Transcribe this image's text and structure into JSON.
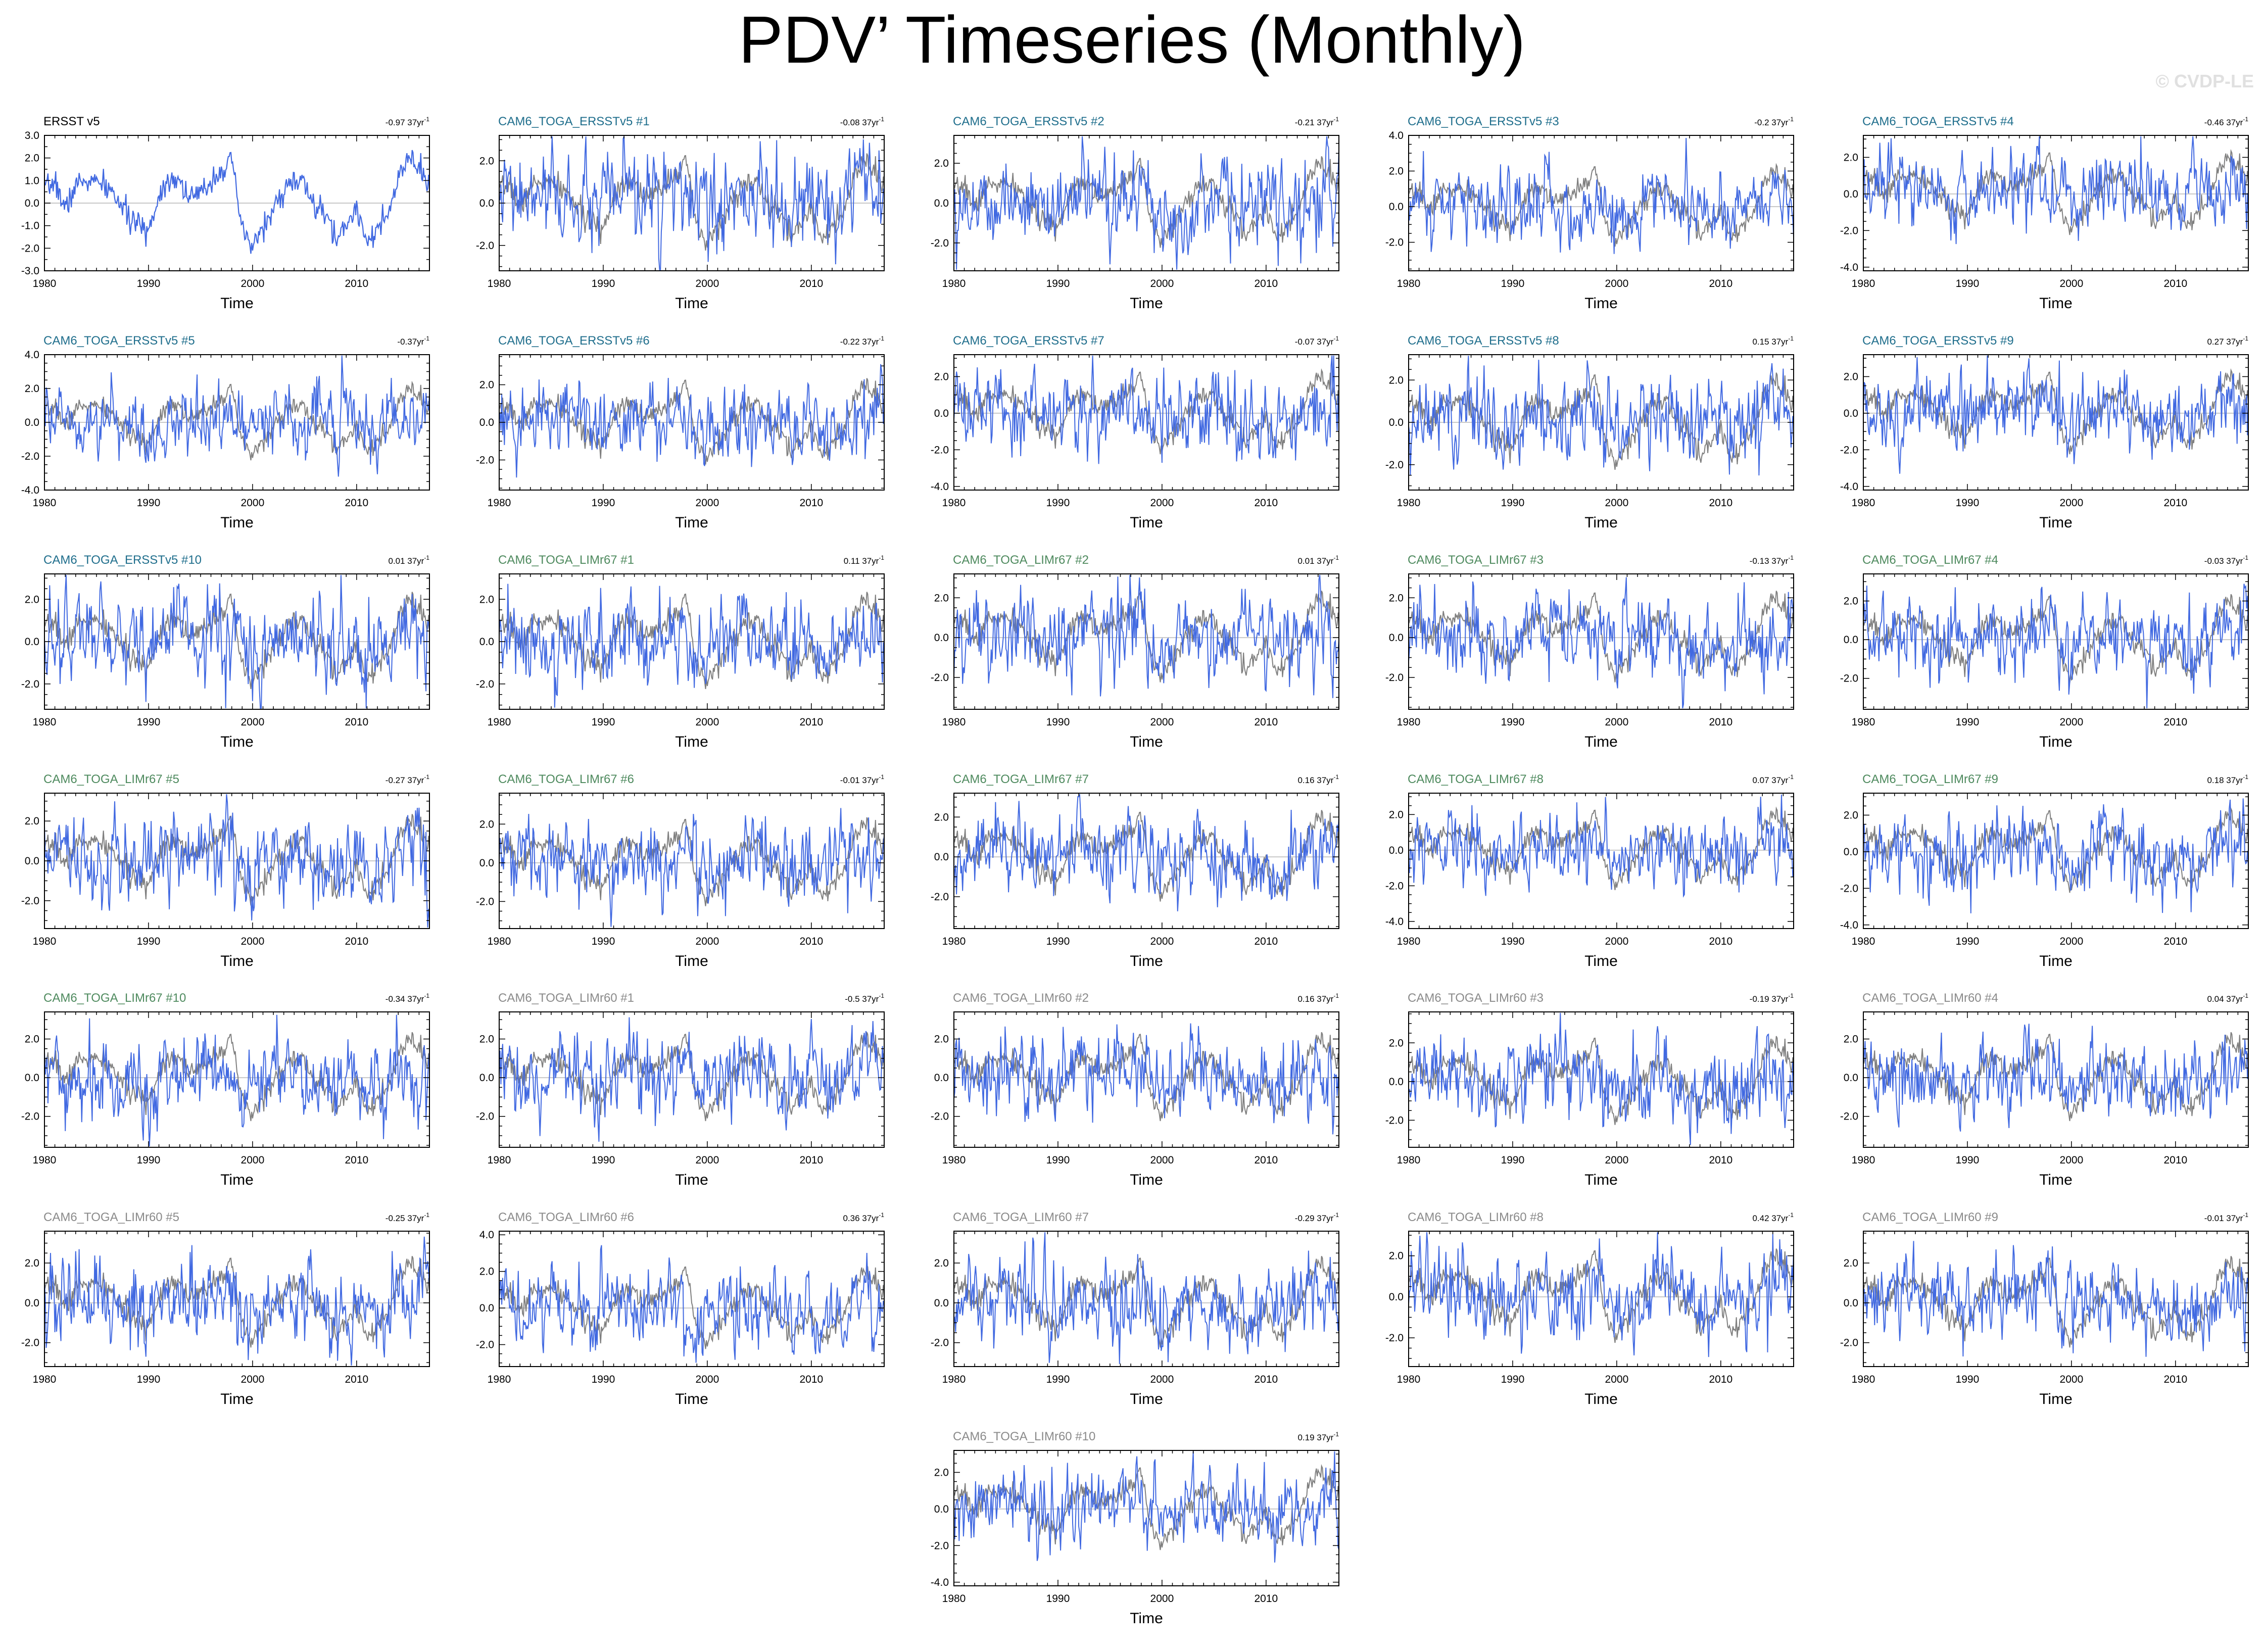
{
  "title": "PDV’ Timeseries (Monthly)",
  "watermark": "© CVDP-LE",
  "colors": {
    "member_line": "#4169e1",
    "observation_line": "#7f7f7f",
    "title_obs": "#000000",
    "title_ersst": "#1f6e8c",
    "title_limr67": "#4e8a5e",
    "title_limr60": "#8a8a8a"
  },
  "chart_data": [
    {
      "type": "line",
      "title": "ERSST v5",
      "group": "obs",
      "trend_label": "-0.97 37yr",
      "trend_exp": "-1",
      "xlabel": "Time",
      "xlim": [
        1980,
        2017
      ],
      "xticks": [
        1980,
        1990,
        2000,
        2010
      ],
      "ylim": [
        -3,
        3
      ],
      "yticks": [
        "3.0",
        "2.0",
        "1.0",
        "0.0",
        "-1.0",
        "-2.0",
        "-3.0"
      ],
      "ytick_values": [
        3,
        2,
        1,
        0,
        -1,
        -2,
        -3
      ],
      "series": [
        {
          "name": "ERSST v5",
          "approx_points": [
            [
              1980,
              0.5
            ],
            [
              1981,
              1.0
            ],
            [
              1982,
              -0.3
            ],
            [
              1983,
              0.8
            ],
            [
              1984,
              1.0
            ],
            [
              1985,
              0.9
            ],
            [
              1986,
              0.7
            ],
            [
              1987,
              0.2
            ],
            [
              1988,
              -0.6
            ],
            [
              1989,
              -1.0
            ],
            [
              1990,
              -1.2
            ],
            [
              1991,
              0.3
            ],
            [
              1992,
              1.2
            ],
            [
              1993,
              1.0
            ],
            [
              1994,
              0.2
            ],
            [
              1995,
              0.4
            ],
            [
              1996,
              1.0
            ],
            [
              1997,
              1.5
            ],
            [
              1998,
              1.8
            ],
            [
              1999,
              -1.2
            ],
            [
              2000,
              -2.0
            ],
            [
              2001,
              -1.0
            ],
            [
              2002,
              -0.4
            ],
            [
              2003,
              0.6
            ],
            [
              2004,
              1.0
            ],
            [
              2005,
              0.8
            ],
            [
              2006,
              -0.2
            ],
            [
              2007,
              -0.5
            ],
            [
              2008,
              -1.6
            ],
            [
              2009,
              -1.0
            ],
            [
              2010,
              -0.2
            ],
            [
              2011,
              -1.6
            ],
            [
              2012,
              -1.2
            ],
            [
              2013,
              -0.6
            ],
            [
              2014,
              1.0
            ],
            [
              2015,
              2.0
            ],
            [
              2016,
              1.5
            ],
            [
              2017,
              0.6
            ]
          ]
        }
      ]
    },
    {
      "type": "line",
      "title": "CAM6_TOGA_ERSSTv5 #1",
      "group": "ersst",
      "trend_label": "-0.08 37yr",
      "trend_exp": "-1",
      "xlabel": "Time",
      "xlim": [
        1980,
        2017
      ],
      "xticks": [
        1980,
        1990,
        2000,
        2010
      ],
      "ylim": [
        -3.2,
        3.2
      ],
      "yticks": [
        "2.0",
        "0.0",
        "-2.0"
      ],
      "ytick_values": [
        2,
        0,
        -2
      ]
    },
    {
      "type": "line",
      "title": "CAM6_TOGA_ERSSTv5 #2",
      "group": "ersst",
      "trend_label": "-0.21 37yr",
      "trend_exp": "-1",
      "xlabel": "Time",
      "xlim": [
        1980,
        2017
      ],
      "xticks": [
        1980,
        1990,
        2000,
        2010
      ],
      "ylim": [
        -3.4,
        3.4
      ],
      "yticks": [
        "2.0",
        "0.0",
        "-2.0"
      ],
      "ytick_values": [
        2,
        0,
        -2
      ]
    },
    {
      "type": "line",
      "title": "CAM6_TOGA_ERSSTv5 #3",
      "group": "ersst",
      "trend_label": "-0.2 37yr",
      "trend_exp": "-1",
      "xlabel": "Time",
      "xlim": [
        1980,
        2017
      ],
      "xticks": [
        1980,
        1990,
        2000,
        2010
      ],
      "ylim": [
        -3.6,
        4.0
      ],
      "yticks": [
        "4.0",
        "2.0",
        "0.0",
        "-2.0"
      ],
      "ytick_values": [
        4,
        2,
        0,
        -2
      ]
    },
    {
      "type": "line",
      "title": "CAM6_TOGA_ERSSTv5 #4",
      "group": "ersst",
      "trend_label": "-0.46 37yr",
      "trend_exp": "-1",
      "xlabel": "Time",
      "xlim": [
        1980,
        2017
      ],
      "xticks": [
        1980,
        1990,
        2000,
        2010
      ],
      "ylim": [
        -4.2,
        3.2
      ],
      "yticks": [
        "2.0",
        "0.0",
        "-2.0",
        "-4.0"
      ],
      "ytick_values": [
        2,
        0,
        -2,
        -4
      ]
    },
    {
      "type": "line",
      "title": "CAM6_TOGA_ERSSTv5 #5",
      "group": "ersst",
      "trend_label": "-0.37yr",
      "trend_exp": "-1",
      "xlabel": "Time",
      "xlim": [
        1980,
        2017
      ],
      "xticks": [
        1980,
        1990,
        2000,
        2010
      ],
      "ylim": [
        -4.0,
        4.0
      ],
      "yticks": [
        "4.0",
        "2.0",
        "0.0",
        "-2.0",
        "-4.0"
      ],
      "ytick_values": [
        4,
        2,
        0,
        -2,
        -4
      ]
    },
    {
      "type": "line",
      "title": "CAM6_TOGA_ERSSTv5 #6",
      "group": "ersst",
      "trend_label": "-0.22 37yr",
      "trend_exp": "-1",
      "xlabel": "Time",
      "xlim": [
        1980,
        2017
      ],
      "xticks": [
        1980,
        1990,
        2000,
        2010
      ],
      "ylim": [
        -3.6,
        3.6
      ],
      "yticks": [
        "2.0",
        "0.0",
        "-2.0"
      ],
      "ytick_values": [
        2,
        0,
        -2
      ]
    },
    {
      "type": "line",
      "title": "CAM6_TOGA_ERSSTv5 #7",
      "group": "ersst",
      "trend_label": "-0.07 37yr",
      "trend_exp": "-1",
      "xlabel": "Time",
      "xlim": [
        1980,
        2017
      ],
      "xticks": [
        1980,
        1990,
        2000,
        2010
      ],
      "ylim": [
        -4.2,
        3.2
      ],
      "yticks": [
        "2.0",
        "0.0",
        "-2.0",
        "-4.0"
      ],
      "ytick_values": [
        2,
        0,
        -2,
        -4
      ]
    },
    {
      "type": "line",
      "title": "CAM6_TOGA_ERSSTv5 #8",
      "group": "ersst",
      "trend_label": "0.15 37yr",
      "trend_exp": "-1",
      "xlabel": "Time",
      "xlim": [
        1980,
        2017
      ],
      "xticks": [
        1980,
        1990,
        2000,
        2010
      ],
      "ylim": [
        -3.2,
        3.2
      ],
      "yticks": [
        "2.0",
        "0.0",
        "-2.0"
      ],
      "ytick_values": [
        2,
        0,
        -2
      ]
    },
    {
      "type": "line",
      "title": "CAM6_TOGA_ERSSTv5 #9",
      "group": "ersst",
      "trend_label": "0.27 37yr",
      "trend_exp": "-1",
      "xlabel": "Time",
      "xlim": [
        1980,
        2017
      ],
      "xticks": [
        1980,
        1990,
        2000,
        2010
      ],
      "ylim": [
        -4.2,
        3.2
      ],
      "yticks": [
        "2.0",
        "0.0",
        "-2.0",
        "-4.0"
      ],
      "ytick_values": [
        2,
        0,
        -2,
        -4
      ]
    },
    {
      "type": "line",
      "title": "CAM6_TOGA_ERSSTv5 #10",
      "group": "ersst",
      "trend_label": "0.01 37yr",
      "trend_exp": "-1",
      "xlabel": "Time",
      "xlim": [
        1980,
        2017
      ],
      "xticks": [
        1980,
        1990,
        2000,
        2010
      ],
      "ylim": [
        -3.2,
        3.2
      ],
      "yticks": [
        "2.0",
        "0.0",
        "-2.0"
      ],
      "ytick_values": [
        2,
        0,
        -2
      ]
    },
    {
      "type": "line",
      "title": "CAM6_TOGA_LIMr67 #1",
      "group": "limr67",
      "trend_label": "0.11 37yr",
      "trend_exp": "-1",
      "xlabel": "Time",
      "xlim": [
        1980,
        2017
      ],
      "xticks": [
        1980,
        1990,
        2000,
        2010
      ],
      "ylim": [
        -3.2,
        3.2
      ],
      "yticks": [
        "2.0",
        "0.0",
        "-2.0"
      ],
      "ytick_values": [
        2,
        0,
        -2
      ]
    },
    {
      "type": "line",
      "title": "CAM6_TOGA_LIMr67 #2",
      "group": "limr67",
      "trend_label": "0.01 37yr",
      "trend_exp": "-1",
      "xlabel": "Time",
      "xlim": [
        1980,
        2017
      ],
      "xticks": [
        1980,
        1990,
        2000,
        2010
      ],
      "ylim": [
        -3.6,
        3.2
      ],
      "yticks": [
        "2.0",
        "0.0",
        "-2.0"
      ],
      "ytick_values": [
        2,
        0,
        -2
      ]
    },
    {
      "type": "line",
      "title": "CAM6_TOGA_LIMr67 #3",
      "group": "limr67",
      "trend_label": "-0.13 37yr",
      "trend_exp": "-1",
      "xlabel": "Time",
      "xlim": [
        1980,
        2017
      ],
      "xticks": [
        1980,
        1990,
        2000,
        2010
      ],
      "ylim": [
        -3.6,
        3.2
      ],
      "yticks": [
        "2.0",
        "0.0",
        "-2.0"
      ],
      "ytick_values": [
        2,
        0,
        -2
      ]
    },
    {
      "type": "line",
      "title": "CAM6_TOGA_LIMr67 #4",
      "group": "limr67",
      "trend_label": "-0.03 37yr",
      "trend_exp": "-1",
      "xlabel": "Time",
      "xlim": [
        1980,
        2017
      ],
      "xticks": [
        1980,
        1990,
        2000,
        2010
      ],
      "ylim": [
        -3.6,
        3.4
      ],
      "yticks": [
        "2.0",
        "0.0",
        "-2.0"
      ],
      "ytick_values": [
        2,
        0,
        -2
      ]
    },
    {
      "type": "line",
      "title": "CAM6_TOGA_LIMr67 #5",
      "group": "limr67",
      "trend_label": "-0.27 37yr",
      "trend_exp": "-1",
      "xlabel": "Time",
      "xlim": [
        1980,
        2017
      ],
      "xticks": [
        1980,
        1990,
        2000,
        2010
      ],
      "ylim": [
        -3.4,
        3.4
      ],
      "yticks": [
        "2.0",
        "0.0",
        "-2.0"
      ],
      "ytick_values": [
        2,
        0,
        -2
      ]
    },
    {
      "type": "line",
      "title": "CAM6_TOGA_LIMr67 #6",
      "group": "limr67",
      "trend_label": "-0.01 37yr",
      "trend_exp": "-1",
      "xlabel": "Time",
      "xlim": [
        1980,
        2017
      ],
      "xticks": [
        1980,
        1990,
        2000,
        2010
      ],
      "ylim": [
        -3.4,
        3.6
      ],
      "yticks": [
        "2.0",
        "0.0",
        "-2.0"
      ],
      "ytick_values": [
        2,
        0,
        -2
      ]
    },
    {
      "type": "line",
      "title": "CAM6_TOGA_LIMr67 #7",
      "group": "limr67",
      "trend_label": "0.16 37yr",
      "trend_exp": "-1",
      "xlabel": "Time",
      "xlim": [
        1980,
        2017
      ],
      "xticks": [
        1980,
        1990,
        2000,
        2010
      ],
      "ylim": [
        -3.6,
        3.2
      ],
      "yticks": [
        "2.0",
        "0.0",
        "-2.0"
      ],
      "ytick_values": [
        2,
        0,
        -2
      ]
    },
    {
      "type": "line",
      "title": "CAM6_TOGA_LIMr67 #8",
      "group": "limr67",
      "trend_label": "0.07 37yr",
      "trend_exp": "-1",
      "xlabel": "Time",
      "xlim": [
        1980,
        2017
      ],
      "xticks": [
        1980,
        1990,
        2000,
        2010
      ],
      "ylim": [
        -4.4,
        3.2
      ],
      "yticks": [
        "2.0",
        "0.0",
        "-2.0",
        "-4.0"
      ],
      "ytick_values": [
        2,
        0,
        -2,
        -4
      ]
    },
    {
      "type": "line",
      "title": "CAM6_TOGA_LIMr67 #9",
      "group": "limr67",
      "trend_label": "0.18 37yr",
      "trend_exp": "-1",
      "xlabel": "Time",
      "xlim": [
        1980,
        2017
      ],
      "xticks": [
        1980,
        1990,
        2000,
        2010
      ],
      "ylim": [
        -4.2,
        3.2
      ],
      "yticks": [
        "2.0",
        "0.0",
        "-2.0",
        "-4.0"
      ],
      "ytick_values": [
        2,
        0,
        -2,
        -4
      ]
    },
    {
      "type": "line",
      "title": "CAM6_TOGA_LIMr67 #10",
      "group": "limr67",
      "trend_label": "-0.34 37yr",
      "trend_exp": "-1",
      "xlabel": "Time",
      "xlim": [
        1980,
        2017
      ],
      "xticks": [
        1980,
        1990,
        2000,
        2010
      ],
      "ylim": [
        -3.6,
        3.4
      ],
      "yticks": [
        "2.0",
        "0.0",
        "-2.0"
      ],
      "ytick_values": [
        2,
        0,
        -2
      ]
    },
    {
      "type": "line",
      "title": "CAM6_TOGA_LIMr60 #1",
      "group": "limr60",
      "trend_label": "-0.5 37yr",
      "trend_exp": "-1",
      "xlabel": "Time",
      "xlim": [
        1980,
        2017
      ],
      "xticks": [
        1980,
        1990,
        2000,
        2010
      ],
      "ylim": [
        -3.6,
        3.4
      ],
      "yticks": [
        "2.0",
        "0.0",
        "-2.0"
      ],
      "ytick_values": [
        2,
        0,
        -2
      ]
    },
    {
      "type": "line",
      "title": "CAM6_TOGA_LIMr60 #2",
      "group": "limr60",
      "trend_label": "0.16 37yr",
      "trend_exp": "-1",
      "xlabel": "Time",
      "xlim": [
        1980,
        2017
      ],
      "xticks": [
        1980,
        1990,
        2000,
        2010
      ],
      "ylim": [
        -3.6,
        3.4
      ],
      "yticks": [
        "2.0",
        "0.0",
        "-2.0"
      ],
      "ytick_values": [
        2,
        0,
        -2
      ]
    },
    {
      "type": "line",
      "title": "CAM6_TOGA_LIMr60 #3",
      "group": "limr60",
      "trend_label": "-0.19 37yr",
      "trend_exp": "-1",
      "xlabel": "Time",
      "xlim": [
        1980,
        2017
      ],
      "xticks": [
        1980,
        1990,
        2000,
        2010
      ],
      "ylim": [
        -3.4,
        3.6
      ],
      "yticks": [
        "2.0",
        "0.0",
        "-2.0"
      ],
      "ytick_values": [
        2,
        0,
        -2
      ]
    },
    {
      "type": "line",
      "title": "CAM6_TOGA_LIMr60 #4",
      "group": "limr60",
      "trend_label": "0.04 37yr",
      "trend_exp": "-1",
      "xlabel": "Time",
      "xlim": [
        1980,
        2017
      ],
      "xticks": [
        1980,
        1990,
        2000,
        2010
      ],
      "ylim": [
        -3.6,
        3.4
      ],
      "yticks": [
        "2.0",
        "0.0",
        "-2.0"
      ],
      "ytick_values": [
        2,
        0,
        -2
      ]
    },
    {
      "type": "line",
      "title": "CAM6_TOGA_LIMr60 #5",
      "group": "limr60",
      "trend_label": "-0.25 37yr",
      "trend_exp": "-1",
      "xlabel": "Time",
      "xlim": [
        1980,
        2017
      ],
      "xticks": [
        1980,
        1990,
        2000,
        2010
      ],
      "ylim": [
        -3.2,
        3.6
      ],
      "yticks": [
        "2.0",
        "0.0",
        "-2.0"
      ],
      "ytick_values": [
        2,
        0,
        -2
      ]
    },
    {
      "type": "line",
      "title": "CAM6_TOGA_LIMr60 #6",
      "group": "limr60",
      "trend_label": "0.36 37yr",
      "trend_exp": "-1",
      "xlabel": "Time",
      "xlim": [
        1980,
        2017
      ],
      "xticks": [
        1980,
        1990,
        2000,
        2010
      ],
      "ylim": [
        -3.2,
        4.2
      ],
      "yticks": [
        "4.0",
        "2.0",
        "0.0",
        "-2.0"
      ],
      "ytick_values": [
        4,
        2,
        0,
        -2
      ]
    },
    {
      "type": "line",
      "title": "CAM6_TOGA_LIMr60 #7",
      "group": "limr60",
      "trend_label": "-0.29 37yr",
      "trend_exp": "-1",
      "xlabel": "Time",
      "xlim": [
        1980,
        2017
      ],
      "xticks": [
        1980,
        1990,
        2000,
        2010
      ],
      "ylim": [
        -3.2,
        3.6
      ],
      "yticks": [
        "2.0",
        "0.0",
        "-2.0"
      ],
      "ytick_values": [
        2,
        0,
        -2
      ]
    },
    {
      "type": "line",
      "title": "CAM6_TOGA_LIMr60 #8",
      "group": "limr60",
      "trend_label": "0.42 37yr",
      "trend_exp": "-1",
      "xlabel": "Time",
      "xlim": [
        1980,
        2017
      ],
      "xticks": [
        1980,
        1990,
        2000,
        2010
      ],
      "ylim": [
        -3.4,
        3.2
      ],
      "yticks": [
        "2.0",
        "0.0",
        "-2.0"
      ],
      "ytick_values": [
        2,
        0,
        -2
      ]
    },
    {
      "type": "line",
      "title": "CAM6_TOGA_LIMr60 #9",
      "group": "limr60",
      "trend_label": "-0.01 37yr",
      "trend_exp": "-1",
      "xlabel": "Time",
      "xlim": [
        1980,
        2017
      ],
      "xticks": [
        1980,
        1990,
        2000,
        2010
      ],
      "ylim": [
        -3.2,
        3.6
      ],
      "yticks": [
        "2.0",
        "0.0",
        "-2.0"
      ],
      "ytick_values": [
        2,
        0,
        -2
      ]
    },
    {
      "type": "line",
      "title": "CAM6_TOGA_LIMr60 #10",
      "group": "limr60",
      "trend_label": "0.19 37yr",
      "trend_exp": "-1",
      "xlabel": "Time",
      "xlim": [
        1980,
        2017
      ],
      "xticks": [
        1980,
        1990,
        2000,
        2010
      ],
      "ylim": [
        -4.2,
        3.2
      ],
      "yticks": [
        "2.0",
        "0.0",
        "-2.0",
        "-4.0"
      ],
      "ytick_values": [
        2,
        0,
        -2,
        -4
      ]
    }
  ]
}
